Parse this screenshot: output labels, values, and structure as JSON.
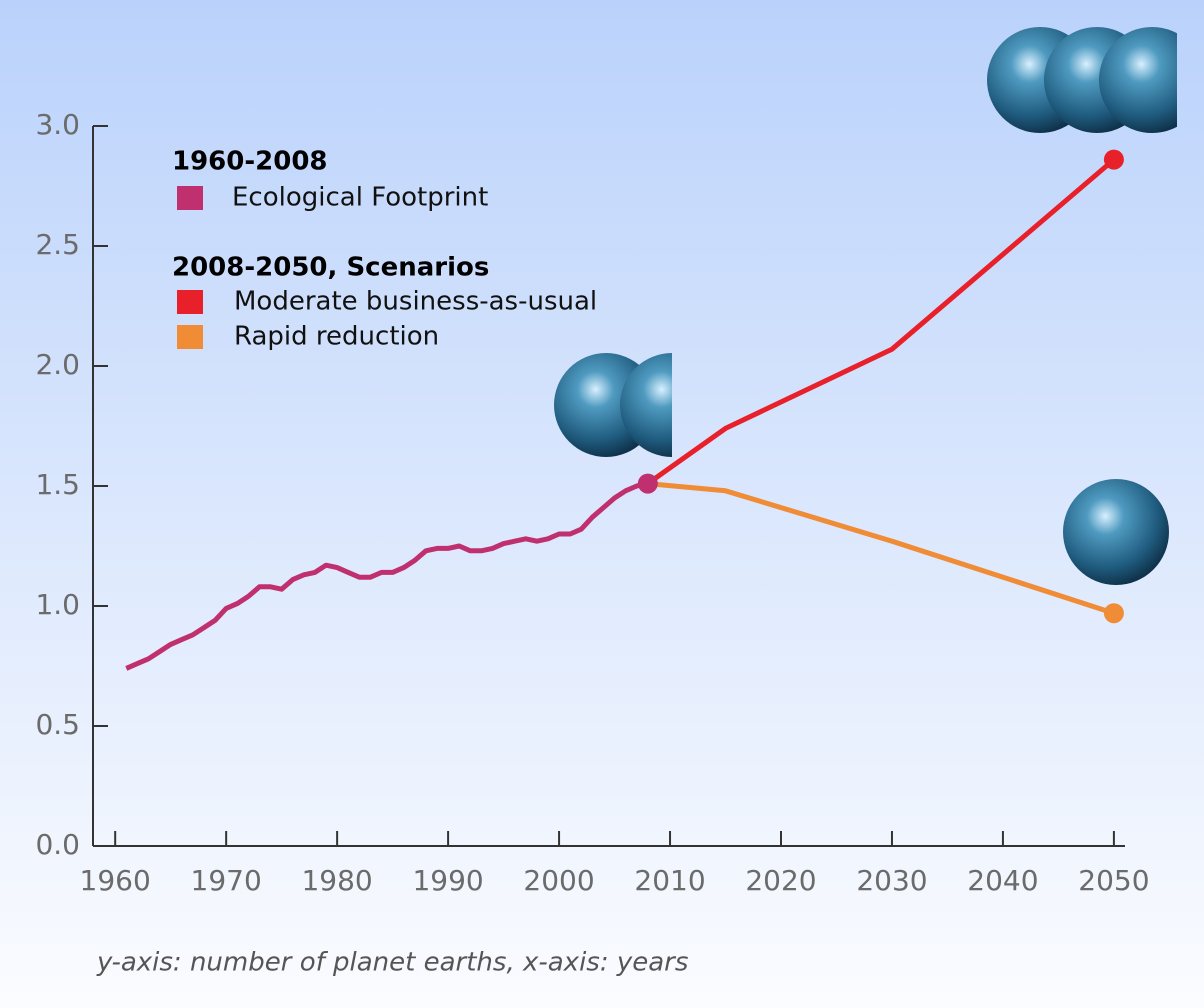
{
  "chart_data": {
    "type": "line",
    "legend_titles": [
      "1960-2008",
      "2008-2050, Scenarios"
    ],
    "note": "y-axis: number of planet earths, x-axis: years",
    "xlim": [
      1958,
      2051
    ],
    "xticks": [
      1960,
      1970,
      1980,
      1990,
      2000,
      2010,
      2020,
      2030,
      2040,
      2050
    ],
    "ylim": [
      0,
      3
    ],
    "yticks": [
      {
        "value": 0,
        "label": "0.0"
      },
      0.5,
      {
        "value": 1,
        "label": "1.0"
      },
      1.5,
      {
        "value": 2,
        "label": "2.0"
      },
      2.5,
      {
        "value": 3,
        "label": "3.0"
      }
    ],
    "series": [
      {
        "name": "Ecological Footprint",
        "color": "#c0306e",
        "x": [
          1961,
          1962,
          1963,
          1964,
          1965,
          1966,
          1967,
          1968,
          1969,
          1970,
          1971,
          1972,
          1973,
          1974,
          1975,
          1976,
          1977,
          1978,
          1979,
          1980,
          1981,
          1982,
          1983,
          1984,
          1985,
          1986,
          1987,
          1988,
          1989,
          1990,
          1991,
          1992,
          1993,
          1994,
          1995,
          1996,
          1997,
          1998,
          1999,
          2000,
          2001,
          2002,
          2003,
          2004,
          2005,
          2006,
          2007,
          2008
        ],
        "values": [
          0.74,
          0.76,
          0.78,
          0.81,
          0.84,
          0.86,
          0.88,
          0.91,
          0.94,
          0.99,
          1.01,
          1.04,
          1.08,
          1.08,
          1.07,
          1.11,
          1.13,
          1.14,
          1.17,
          1.16,
          1.14,
          1.12,
          1.12,
          1.14,
          1.14,
          1.16,
          1.19,
          1.23,
          1.24,
          1.24,
          1.25,
          1.23,
          1.23,
          1.24,
          1.26,
          1.27,
          1.28,
          1.27,
          1.28,
          1.3,
          1.3,
          1.32,
          1.37,
          1.41,
          1.45,
          1.48,
          1.5,
          1.51
        ]
      },
      {
        "name": "Moderate business-as-usual",
        "color": "#e8202a",
        "x": [
          2008,
          2015,
          2030,
          2050
        ],
        "values": [
          1.51,
          1.74,
          2.07,
          2.86
        ]
      },
      {
        "name": "Rapid reduction",
        "color": "#ef8c35",
        "x": [
          2008,
          2015,
          2030,
          2050
        ],
        "values": [
          1.51,
          1.48,
          1.27,
          0.97
        ]
      }
    ]
  }
}
